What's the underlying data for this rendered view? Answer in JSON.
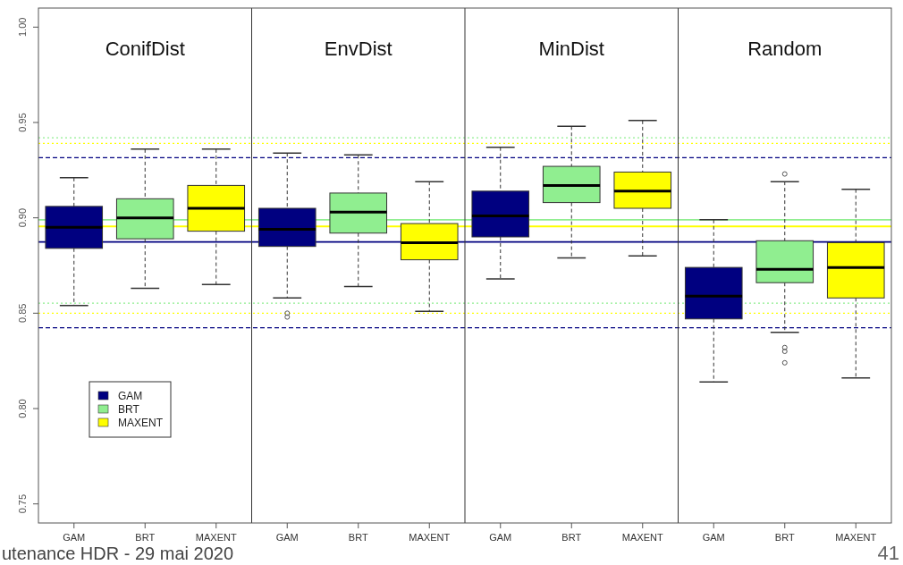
{
  "chart_data": {
    "type": "box",
    "categories": [
      "GAM",
      "BRT",
      "MAXENT",
      "GAM",
      "BRT",
      "MAXENT",
      "GAM",
      "BRT",
      "MAXENT",
      "GAM",
      "BRT",
      "MAXENT"
    ],
    "series": [
      {
        "name": "GAM",
        "color": "#000080",
        "boxes": [
          {
            "low": 0.854,
            "q1": 0.884,
            "median": 0.895,
            "q3": 0.906,
            "high": 0.921
          },
          null,
          null,
          {
            "low": 0.858,
            "q1": 0.885,
            "median": 0.894,
            "q3": 0.905,
            "high": 0.934,
            "outliers": [
              0.85,
              0.848
            ]
          },
          null,
          null,
          {
            "low": 0.868,
            "q1": 0.89,
            "median": 0.901,
            "q3": 0.914,
            "high": 0.937
          },
          null,
          null,
          {
            "low": 0.814,
            "q1": 0.847,
            "median": 0.859,
            "q3": 0.874,
            "high": 0.899
          },
          null,
          null
        ]
      },
      {
        "name": "BRT",
        "color": "#90ee90",
        "boxes": [
          null,
          {
            "low": 0.863,
            "q1": 0.889,
            "median": 0.9,
            "q3": 0.91,
            "high": 0.936
          },
          null,
          null,
          {
            "low": 0.864,
            "q1": 0.892,
            "median": 0.903,
            "q3": 0.913,
            "high": 0.933
          },
          null,
          null,
          {
            "low": 0.879,
            "q1": 0.908,
            "median": 0.917,
            "q3": 0.927,
            "high": 0.948
          },
          null,
          null,
          {
            "low": 0.84,
            "q1": 0.866,
            "median": 0.873,
            "q3": 0.888,
            "high": 0.919,
            "outliers": [
              0.923,
              0.832,
              0.83,
              0.824
            ]
          },
          null
        ]
      },
      {
        "name": "MAXENT",
        "color": "#ffff00",
        "boxes": [
          null,
          null,
          {
            "low": 0.865,
            "q1": 0.893,
            "median": 0.905,
            "q3": 0.917,
            "high": 0.936
          },
          null,
          null,
          {
            "low": 0.851,
            "q1": 0.878,
            "median": 0.887,
            "q3": 0.897,
            "high": 0.919
          },
          null,
          null,
          {
            "low": 0.88,
            "q1": 0.905,
            "median": 0.914,
            "q3": 0.924,
            "high": 0.951
          },
          null,
          null,
          {
            "low": 0.816,
            "q1": 0.858,
            "median": 0.874,
            "q3": 0.887,
            "high": 0.915
          }
        ]
      }
    ],
    "ylim": [
      0.74,
      1.01
    ],
    "yticks": [
      {
        "value": 0.75,
        "label": "0.75"
      },
      {
        "value": 0.8,
        "label": "0.80"
      },
      {
        "value": 0.85,
        "label": "0.85"
      },
      {
        "value": 0.9,
        "label": "0.90"
      },
      {
        "value": 0.95,
        "label": "0.95"
      },
      {
        "value": 1.0,
        "label": "1.00"
      }
    ],
    "ref_lines": [
      {
        "axis": "y",
        "value": 0.942,
        "color": "#90ee90",
        "line_style": "dotted"
      },
      {
        "axis": "y",
        "value": 0.939,
        "color": "#ffff00",
        "line_style": "dotted"
      },
      {
        "axis": "y",
        "value": 0.9315,
        "color": "#000080",
        "line_style": "dashed"
      },
      {
        "axis": "y",
        "value": 0.899,
        "color": "#90ee90",
        "line_style": "solid"
      },
      {
        "axis": "y",
        "value": 0.8955,
        "color": "#ffff00",
        "line_style": "solid"
      },
      {
        "axis": "y",
        "value": 0.8874,
        "color": "#000080",
        "line_style": "solid"
      },
      {
        "axis": "y",
        "value": 0.8553,
        "color": "#90ee90",
        "line_style": "dotted"
      },
      {
        "axis": "y",
        "value": 0.85,
        "color": "#ffff00",
        "line_style": "dotted"
      },
      {
        "axis": "y",
        "value": 0.8424,
        "color": "#000080",
        "line_style": "dashed"
      }
    ],
    "annotations": [
      "ConifDist",
      "EnvDist",
      "MinDist",
      "Random",
      "utenance HDR - 29 mai 2020",
      "41"
    ],
    "legend": "bottom left"
  }
}
